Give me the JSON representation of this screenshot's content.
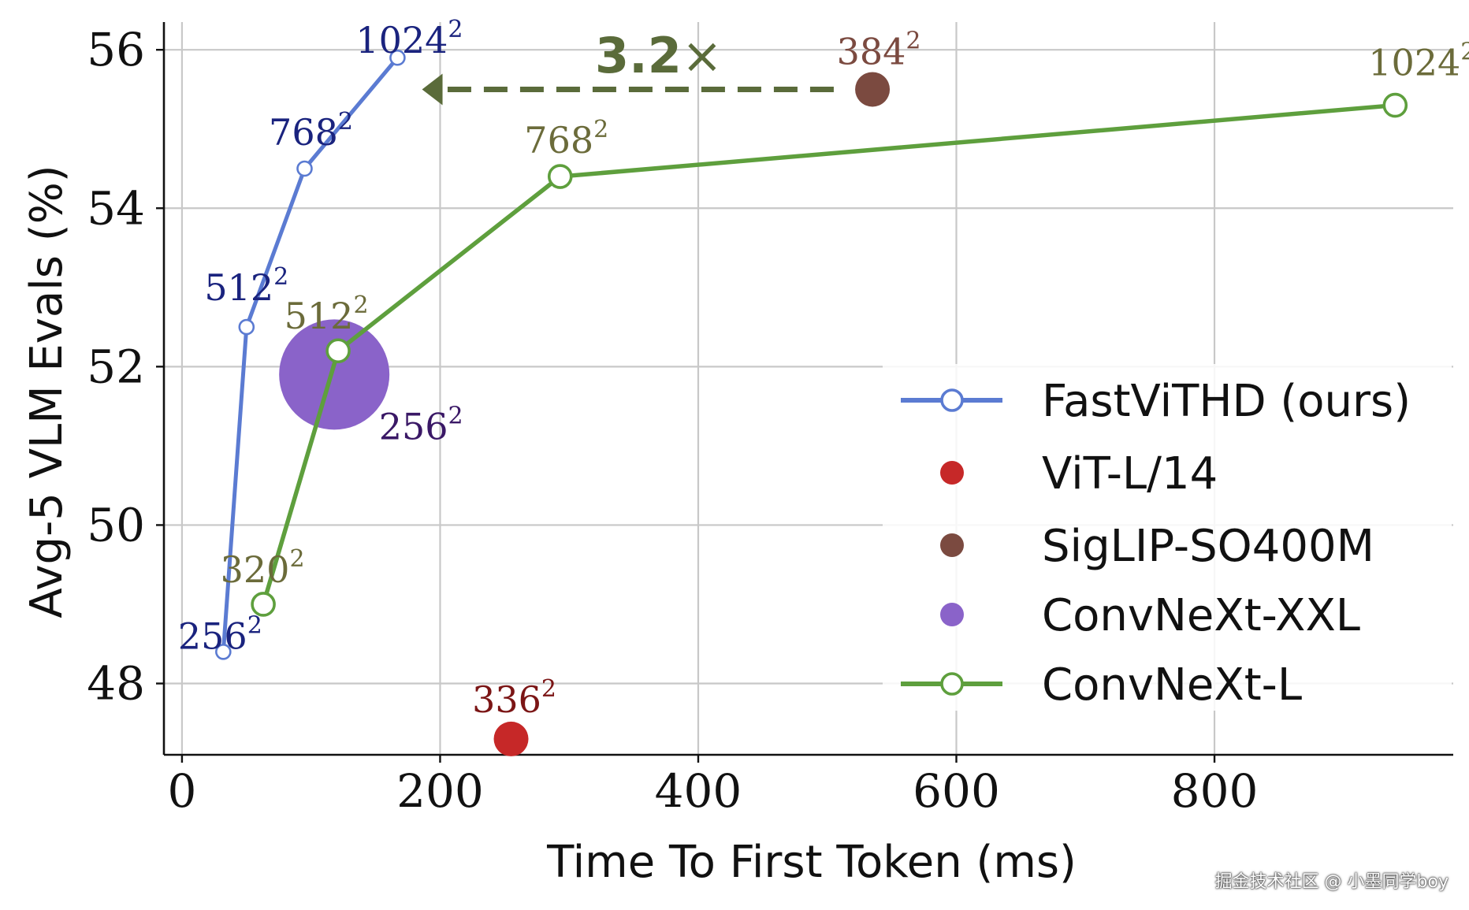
{
  "chart_data": {
    "type": "scatter",
    "xlabel": "Time To First Token (ms)",
    "ylabel": "Avg-5 VLM Evals (%)",
    "xlim": [
      -14,
      985
    ],
    "ylim": [
      47.1,
      56.35
    ],
    "xticks": [
      0,
      200,
      400,
      600,
      800
    ],
    "yticks": [
      48,
      50,
      52,
      54,
      56
    ],
    "grid": true,
    "legend_position": "center-right",
    "series": [
      {
        "name": "FastViTHD (ours)",
        "mode": "line-markers",
        "color": "#5b7bd2",
        "label_color": "#1a237e",
        "points": [
          {
            "x": 32,
            "y": 48.4,
            "label": "256",
            "sup": "2"
          },
          {
            "x": 50,
            "y": 52.5,
            "label": "512",
            "sup": "2"
          },
          {
            "x": 95,
            "y": 54.5,
            "label": "768",
            "sup": "2"
          },
          {
            "x": 167,
            "y": 55.9,
            "label": "1024",
            "sup": "2"
          }
        ]
      },
      {
        "name": "ViT-L/14",
        "mode": "marker",
        "color": "#c62828",
        "label_color": "#7b1515",
        "points": [
          {
            "x": 255,
            "y": 47.3,
            "label": "336",
            "sup": "2"
          }
        ]
      },
      {
        "name": "SigLIP-SO400M",
        "mode": "marker",
        "color": "#7b4a40",
        "label_color": "#7b4a40",
        "points": [
          {
            "x": 535,
            "y": 55.5,
            "label": "384",
            "sup": "2"
          }
        ]
      },
      {
        "name": "ConvNeXt-XXL",
        "mode": "marker",
        "color": "#8a63c9",
        "label_color": "#3a1866",
        "points": [
          {
            "x": 118,
            "y": 51.9,
            "label": "256",
            "sup": "2"
          }
        ]
      },
      {
        "name": "ConvNeXt-L",
        "mode": "line-markers",
        "color": "#5e9f3d",
        "label_color": "#6b6b3a",
        "points": [
          {
            "x": 63,
            "y": 49.0,
            "label": "320",
            "sup": "2"
          },
          {
            "x": 121,
            "y": 52.2,
            "label": "512",
            "sup": "2"
          },
          {
            "x": 293,
            "y": 54.4,
            "label": "768",
            "sup": "2"
          },
          {
            "x": 940,
            "y": 55.3,
            "label": "1024",
            "sup": "2"
          }
        ]
      }
    ],
    "annotations": [
      {
        "text": "3.2",
        "suffix": "×",
        "from_x": 505,
        "to_x": 186,
        "y": 55.5,
        "color": "#5a6b3a"
      }
    ]
  },
  "watermark": "掘金技术社区 @ 小墨同学boy"
}
